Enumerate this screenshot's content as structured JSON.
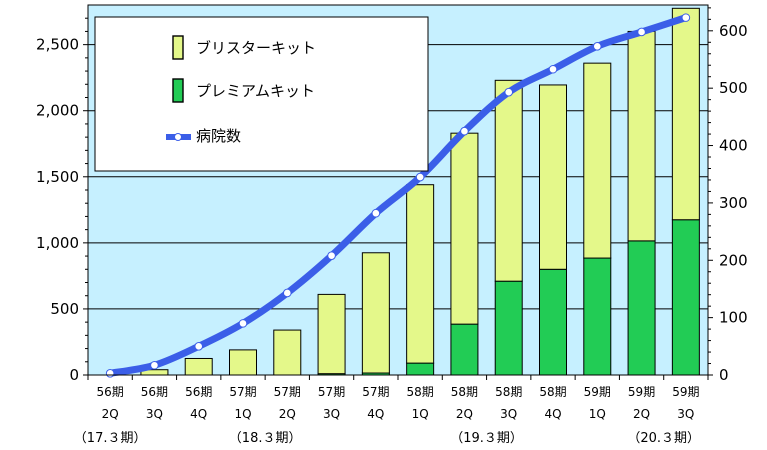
{
  "chart_data": {
    "type": "bar",
    "categories": [
      [
        "56期",
        "2Q"
      ],
      [
        "56期",
        "3Q"
      ],
      [
        "56期",
        "4Q"
      ],
      [
        "57期",
        "1Q"
      ],
      [
        "57期",
        "2Q"
      ],
      [
        "57期",
        "3Q"
      ],
      [
        "57期",
        "4Q"
      ],
      [
        "58期",
        "1Q"
      ],
      [
        "58期",
        "2Q"
      ],
      [
        "58期",
        "3Q"
      ],
      [
        "58期",
        "4Q"
      ],
      [
        "59期",
        "1Q"
      ],
      [
        "59期",
        "2Q"
      ],
      [
        "59期",
        "3Q"
      ]
    ],
    "fiscal_year_labels": [
      {
        "label": "（17.３期）",
        "index": 0
      },
      {
        "label": "（18.３期）",
        "index": 3.5
      },
      {
        "label": "（19.３期）",
        "index": 8.5
      },
      {
        "label": "（20.３期）",
        "index": 12.5
      }
    ],
    "series": [
      {
        "name": "プレミアムキット",
        "type": "stacked-bar",
        "axis": "left",
        "color": "#22cc55",
        "values": [
          0,
          0,
          0,
          0,
          0,
          10,
          15,
          90,
          385,
          710,
          800,
          885,
          1015,
          1175
        ]
      },
      {
        "name": "ブリスターキット",
        "type": "stacked-bar",
        "axis": "left",
        "color": "#e4f88a",
        "values": [
          0,
          40,
          125,
          190,
          340,
          600,
          910,
          1350,
          1445,
          1520,
          1395,
          1475,
          1585,
          1600
        ]
      },
      {
        "name": "病院数",
        "type": "line",
        "axis": "right",
        "color": "#3b5ee8",
        "values": [
          3,
          17,
          50,
          90,
          143,
          208,
          282,
          345,
          425,
          493,
          533,
          573,
          598,
          623
        ]
      }
    ],
    "y_left": {
      "ylim": [
        0,
        2800
      ],
      "ticks": [
        0,
        500,
        1000,
        1500,
        2000,
        2500
      ],
      "tick_labels": [
        "0",
        "500",
        "1,000",
        "1,500",
        "2,000",
        "2,500"
      ]
    },
    "y_right": {
      "ylim": [
        0,
        645
      ],
      "ticks": [
        0,
        100,
        200,
        300,
        400,
        500,
        600
      ],
      "tick_labels": [
        "0",
        "100",
        "200",
        "300",
        "400",
        "500",
        "600"
      ]
    },
    "grid": true,
    "legend_position": "top-left"
  }
}
